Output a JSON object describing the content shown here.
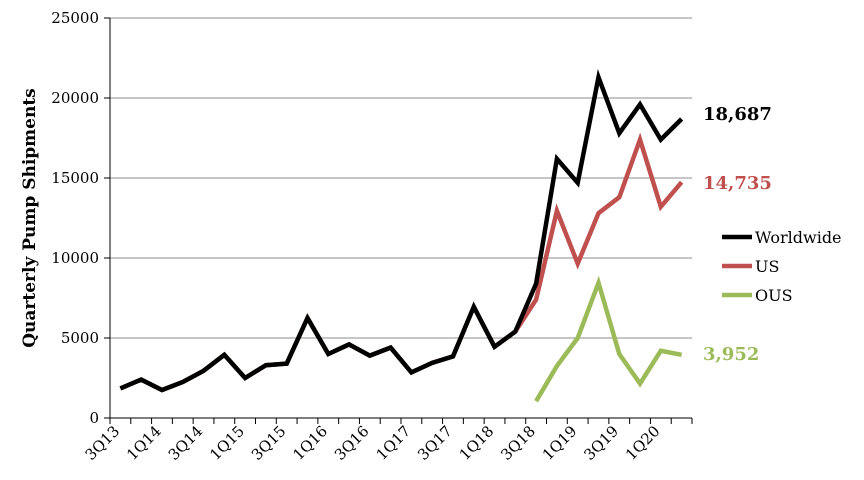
{
  "chart_data": {
    "type": "line",
    "title": "",
    "xlabel": "",
    "ylabel": "Quarterly Pump Shipments",
    "ylim": [
      0,
      25000
    ],
    "yticks": [
      "0",
      "5000",
      "10000",
      "15000",
      "20000",
      "25000"
    ],
    "ytick_values": [
      0,
      5000,
      10000,
      15000,
      20000,
      25000
    ],
    "grid": true,
    "legend_position": "right",
    "categories": [
      "3Q13",
      "4Q13",
      "1Q14",
      "2Q14",
      "3Q14",
      "4Q14",
      "1Q15",
      "2Q15",
      "3Q15",
      "4Q15",
      "1Q16",
      "2Q16",
      "3Q16",
      "4Q16",
      "1Q17",
      "2Q17",
      "3Q17",
      "4Q17",
      "1Q18",
      "2Q18",
      "3Q18",
      "4Q18",
      "1Q19",
      "2Q19",
      "3Q19",
      "4Q19",
      "1Q20",
      "2Q20"
    ],
    "xtick_labels": [
      "3Q13",
      "1Q14",
      "3Q14",
      "1Q15",
      "3Q15",
      "1Q16",
      "3Q16",
      "1Q17",
      "3Q17",
      "1Q18",
      "3Q18",
      "1Q19",
      "3Q19",
      "1Q20"
    ],
    "xtick_indices": [
      0,
      2,
      4,
      6,
      8,
      10,
      12,
      14,
      16,
      18,
      20,
      22,
      24,
      26
    ],
    "series": [
      {
        "name": "Worldwide",
        "color": "#000000",
        "values": [
          1850,
          2400,
          1750,
          2250,
          2950,
          3950,
          2500,
          3300,
          3400,
          6250,
          4000,
          4600,
          3900,
          4400,
          2850,
          3450,
          3850,
          6950,
          4450,
          5400,
          8400,
          16200,
          14700,
          21300,
          17800,
          19600,
          17400,
          18687
        ],
        "end_label": "18,687"
      },
      {
        "name": "US",
        "color": "#c0504d",
        "values": [
          1850,
          2400,
          1750,
          2250,
          2950,
          3950,
          2500,
          3300,
          3400,
          6250,
          4000,
          4600,
          3900,
          4400,
          2850,
          3450,
          3850,
          6950,
          4450,
          5400,
          7400,
          12950,
          9650,
          12800,
          13800,
          17400,
          13200,
          14735
        ],
        "end_label": "14,735"
      },
      {
        "name": "OUS",
        "color": "#9bbb59",
        "values": [
          null,
          null,
          null,
          null,
          null,
          null,
          null,
          null,
          null,
          null,
          null,
          null,
          null,
          null,
          null,
          null,
          null,
          null,
          null,
          null,
          1050,
          3250,
          5000,
          8450,
          4000,
          2150,
          4200,
          3952
        ],
        "end_label": "3,952"
      }
    ]
  }
}
